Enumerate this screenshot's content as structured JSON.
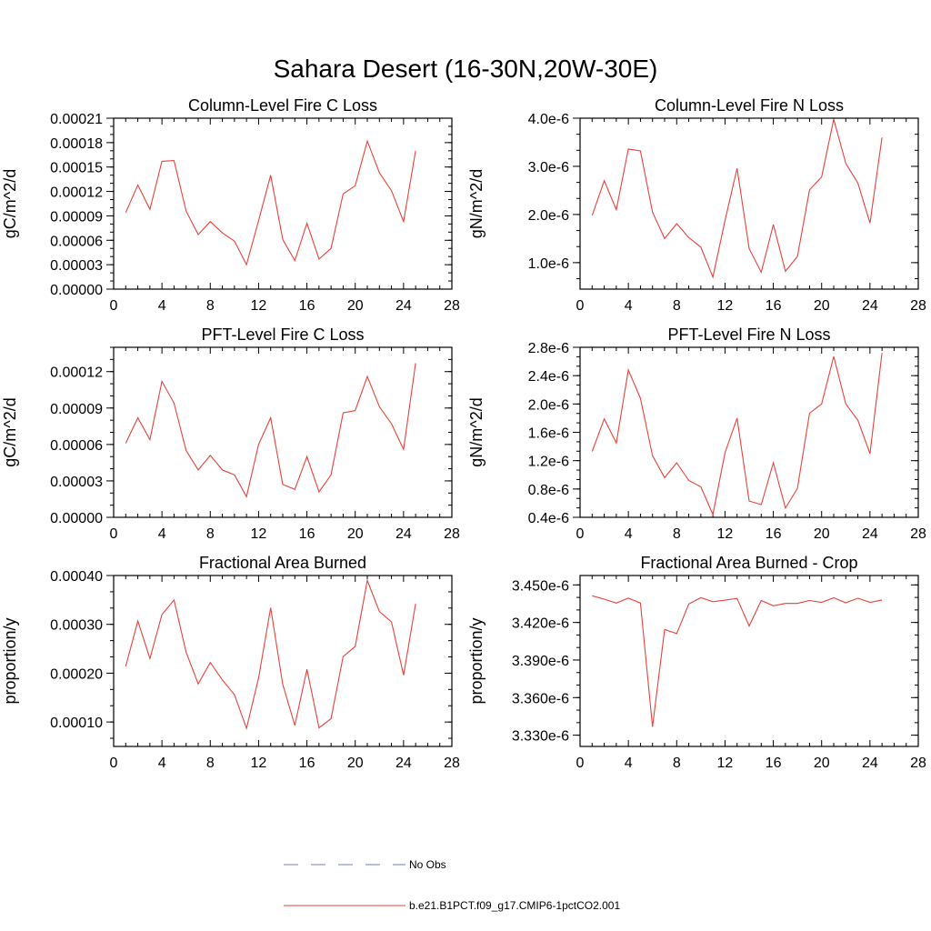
{
  "figure": {
    "title": "Sahara Desert (16-30N,20W-30E)"
  },
  "legend": {
    "items": [
      {
        "label": "No Obs",
        "color": "#6f7fb8",
        "style": "dashed"
      },
      {
        "label": "b.e21.B1PCT.f09_g17.CMIP6-1pctCO2.001",
        "color": "#e8413a",
        "style": "solid"
      }
    ]
  },
  "chart_data": [
    {
      "type": "line",
      "title": "Column-Level Fire C Loss",
      "ylabel": "gC/m^2/d",
      "xlim": [
        0,
        28
      ],
      "ylim": [
        0,
        0.00021
      ],
      "x_ticks": [
        "0",
        "4",
        "8",
        "12",
        "16",
        "20",
        "24",
        "28"
      ],
      "y_tick_values": [
        0,
        3e-05,
        6e-05,
        9e-05,
        0.00012,
        0.00015,
        0.00018,
        0.00021
      ],
      "y_tick_labels": [
        "0.00000",
        "0.00003",
        "0.00006",
        "0.00009",
        "0.00012",
        "0.00015",
        "0.00018",
        "0.00021"
      ],
      "x": [
        1,
        2,
        3,
        4,
        5,
        6,
        7,
        8,
        9,
        10,
        11,
        12,
        13,
        14,
        15,
        16,
        17,
        18,
        19,
        20,
        21,
        22,
        23,
        24,
        25
      ],
      "series": [
        {
          "name": "b.e21.B1PCT.f09_g17.CMIP6-1pctCO2.001",
          "color": "#e8413a",
          "values": [
            9.4e-05,
            0.000128,
            9.8e-05,
            0.000157,
            0.000158,
            9.6e-05,
            6.7e-05,
            8.3e-05,
            6.9e-05,
            5.9e-05,
            3e-05,
            8.4e-05,
            0.00014,
            6.1e-05,
            3.5e-05,
            8.1e-05,
            3.7e-05,
            5e-05,
            0.000117,
            0.000127,
            0.000182,
            0.000143,
            0.000121,
            8.3e-05,
            0.00017
          ]
        }
      ]
    },
    {
      "type": "line",
      "title": "Column-Level Fire N Loss",
      "ylabel": "gN/m^2/d",
      "xlim": [
        0,
        28
      ],
      "ylim": [
        4.5e-07,
        4e-06
      ],
      "x_ticks": [
        "0",
        "4",
        "8",
        "12",
        "16",
        "20",
        "24",
        "28"
      ],
      "y_tick_values": [
        1e-06,
        2e-06,
        3e-06,
        4e-06
      ],
      "y_tick_labels": [
        "1.0e-6",
        "2.0e-6",
        "3.0e-6",
        "4.0e-6"
      ],
      "x": [
        1,
        2,
        3,
        4,
        5,
        6,
        7,
        8,
        9,
        10,
        11,
        12,
        13,
        14,
        15,
        16,
        17,
        18,
        19,
        20,
        21,
        22,
        23,
        24,
        25
      ],
      "series": [
        {
          "name": "b.e21.B1PCT.f09_g17.CMIP6-1pctCO2.001",
          "color": "#e8413a",
          "values": [
            1.98e-06,
            2.7e-06,
            2.1e-06,
            3.36e-06,
            3.32e-06,
            2.05e-06,
            1.5e-06,
            1.81e-06,
            1.52e-06,
            1.32e-06,
            7e-07,
            1.87e-06,
            2.96e-06,
            1.29e-06,
            8e-07,
            1.79e-06,
            8.2e-07,
            1.13e-06,
            2.51e-06,
            2.78e-06,
            3.98e-06,
            3.06e-06,
            2.65e-06,
            1.82e-06,
            3.6e-06
          ]
        }
      ]
    },
    {
      "type": "line",
      "title": "PFT-Level Fire C Loss",
      "ylabel": "gC/m^2/d",
      "xlim": [
        0,
        28
      ],
      "ylim": [
        0,
        0.00014
      ],
      "x_ticks": [
        "0",
        "4",
        "8",
        "12",
        "16",
        "20",
        "24",
        "28"
      ],
      "y_tick_values": [
        0,
        3e-05,
        6e-05,
        9e-05,
        0.00012
      ],
      "y_tick_labels": [
        "0.00000",
        "0.00003",
        "0.00006",
        "0.00009",
        "0.00012"
      ],
      "x": [
        1,
        2,
        3,
        4,
        5,
        6,
        7,
        8,
        9,
        10,
        11,
        12,
        13,
        14,
        15,
        16,
        17,
        18,
        19,
        20,
        21,
        22,
        23,
        24,
        25
      ],
      "series": [
        {
          "name": "b.e21.B1PCT.f09_g17.CMIP6-1pctCO2.001",
          "color": "#e8413a",
          "values": [
            6.1e-05,
            8.2e-05,
            6.4e-05,
            0.000112,
            9.4e-05,
            5.5e-05,
            3.9e-05,
            5.1e-05,
            3.9e-05,
            3.5e-05,
            1.7e-05,
            6e-05,
            8.2e-05,
            2.7e-05,
            2.3e-05,
            5e-05,
            2.1e-05,
            3.5e-05,
            8.6e-05,
            8.8e-05,
            0.000116,
            9.1e-05,
            7.7e-05,
            5.6e-05,
            0.000127
          ]
        }
      ]
    },
    {
      "type": "line",
      "title": "PFT-Level Fire N Loss",
      "ylabel": "gN/m^2/d",
      "xlim": [
        0,
        28
      ],
      "ylim": [
        4e-07,
        2.8e-06
      ],
      "x_ticks": [
        "0",
        "4",
        "8",
        "12",
        "16",
        "20",
        "24",
        "28"
      ],
      "y_tick_values": [
        4e-07,
        8e-07,
        1.2e-06,
        1.6e-06,
        2e-06,
        2.4e-06,
        2.8e-06
      ],
      "y_tick_labels": [
        "0.4e-6",
        "0.8e-6",
        "1.2e-6",
        "1.6e-6",
        "2.0e-6",
        "2.4e-6",
        "2.8e-6"
      ],
      "x": [
        1,
        2,
        3,
        4,
        5,
        6,
        7,
        8,
        9,
        10,
        11,
        12,
        13,
        14,
        15,
        16,
        17,
        18,
        19,
        20,
        21,
        22,
        23,
        24,
        25
      ],
      "series": [
        {
          "name": "b.e21.B1PCT.f09_g17.CMIP6-1pctCO2.001",
          "color": "#e8413a",
          "values": [
            1.33e-06,
            1.79e-06,
            1.45e-06,
            2.48e-06,
            2.08e-06,
            1.27e-06,
            9.6e-07,
            1.17e-06,
            9.2e-07,
            8.3e-07,
            4.4e-07,
            1.31e-06,
            1.8e-06,
            6.3e-07,
            5.8e-07,
            1.17e-06,
            5.3e-07,
            8.1e-07,
            1.87e-06,
            2e-06,
            2.67e-06,
            2e-06,
            1.77e-06,
            1.3e-06,
            2.72e-06
          ]
        }
      ]
    },
    {
      "type": "line",
      "title": "Fractional Area Burned",
      "ylabel": "proportion/y",
      "xlim": [
        0,
        28
      ],
      "ylim": [
        5e-05,
        0.0004
      ],
      "x_ticks": [
        "0",
        "4",
        "8",
        "12",
        "16",
        "20",
        "24",
        "28"
      ],
      "y_tick_values": [
        0.0001,
        0.0002,
        0.0003,
        0.0004
      ],
      "y_tick_labels": [
        "0.00010",
        "0.00020",
        "0.00030",
        "0.00040"
      ],
      "x": [
        1,
        2,
        3,
        4,
        5,
        6,
        7,
        8,
        9,
        10,
        11,
        12,
        13,
        14,
        15,
        16,
        17,
        18,
        19,
        20,
        21,
        22,
        23,
        24,
        25
      ],
      "series": [
        {
          "name": "b.e21.B1PCT.f09_g17.CMIP6-1pctCO2.001",
          "color": "#e8413a",
          "values": [
            0.000214,
            0.000307,
            0.00023,
            0.00032,
            0.00035,
            0.000243,
            0.000178,
            0.000222,
            0.000186,
            0.000156,
            8.7e-05,
            0.00019,
            0.000334,
            0.000177,
            9.3e-05,
            0.000208,
            8.8e-05,
            0.000107,
            0.000234,
            0.000255,
            0.00039,
            0.000326,
            0.000305,
            0.000196,
            0.000342
          ]
        }
      ]
    },
    {
      "type": "line",
      "title": "Fractional Area Burned - Crop",
      "ylabel": "proportion/y",
      "xlim": [
        0,
        28
      ],
      "ylim": [
        3.321e-06,
        3.4575e-06
      ],
      "x_ticks": [
        "0",
        "4",
        "8",
        "12",
        "16",
        "20",
        "24",
        "28"
      ],
      "y_tick_values": [
        3.33e-06,
        3.36e-06,
        3.39e-06,
        3.42e-06,
        3.45e-06
      ],
      "y_tick_labels": [
        "3.330e-6",
        "3.360e-6",
        "3.390e-6",
        "3.420e-6",
        "3.450e-6"
      ],
      "x": [
        1,
        2,
        3,
        4,
        5,
        6,
        7,
        8,
        9,
        10,
        11,
        12,
        13,
        14,
        15,
        16,
        17,
        18,
        19,
        20,
        21,
        22,
        23,
        24,
        25
      ],
      "series": [
        {
          "name": "b.e21.B1PCT.f09_g17.CMIP6-1pctCO2.001",
          "color": "#e8413a",
          "values": [
            3.4413e-06,
            3.4386e-06,
            3.4355e-06,
            3.4394e-06,
            3.4356e-06,
            3.3367e-06,
            3.4144e-06,
            3.4111e-06,
            3.4348e-06,
            3.4398e-06,
            3.4366e-06,
            3.4378e-06,
            3.4392e-06,
            3.4172e-06,
            3.4375e-06,
            3.4333e-06,
            3.4352e-06,
            3.4352e-06,
            3.4375e-06,
            3.4361e-06,
            3.4397e-06,
            3.4357e-06,
            3.4394e-06,
            3.4361e-06,
            3.438e-06
          ]
        }
      ]
    }
  ]
}
